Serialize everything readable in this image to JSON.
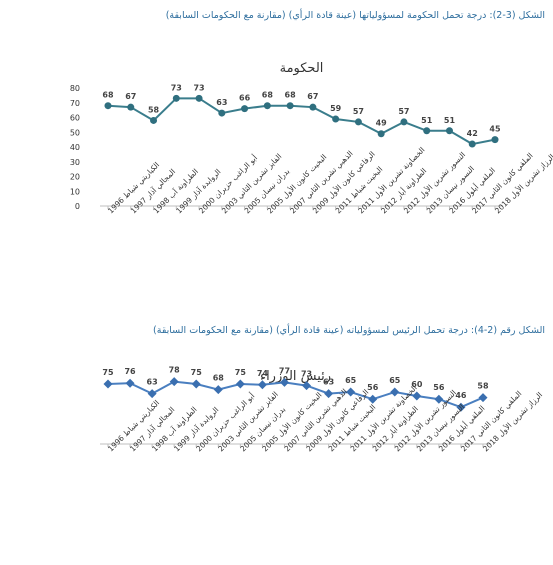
{
  "figure1": {
    "caption": "الشكل (3-2): درجة تحمل الحكومة لمسؤولياتها (عينة قادة الرأي) (مقارنة مع الحكومات السابقة)"
  },
  "figure2": {
    "caption": "الشكل رقم (2-4): درجة تحمل الرئيس لمسؤولياته (عينة قادة الرأي) (مقارنة مع الحكومات السابقة)"
  },
  "colors": {
    "line1": "#3a7d8c",
    "marker1": "#2f6f7f",
    "line2": "#4a7fc0",
    "marker2": "#3a6fb0",
    "highlight_label": "#e02020",
    "caption": "#2e6e9e"
  },
  "chart_data": [
    {
      "type": "line",
      "title": "الحكومة",
      "ylim": [
        0,
        80
      ],
      "yticks": [
        0,
        10,
        20,
        30,
        40,
        50,
        60,
        70,
        80
      ],
      "grid": false,
      "legend": "none",
      "marker": "circle",
      "categories": [
        "الكباريتي شباط 1996",
        "المجالي آذار 1997",
        "الطراونة آب 1998",
        "الروابدة آذار 1999",
        "أبو الراغب حزيران 2000",
        "الفايز تشرين الثاني 2003",
        "بدران نيسان 2005",
        "البخيت كانون الأول 2005",
        "الذهبي تشرين الثاني 2007",
        "الرفاعي كانون الأول 2009",
        "البخيت شباط 2011",
        "الخصاونة تشرين الأول 2011",
        "الطراونة أيار 2012",
        "النسور تشرين الأول 2012",
        "النسور نيسان 2013",
        "الملقي أيلول 2016",
        "الملقي كانون الثاني 2017",
        "الرزاز تشرين الأول 2018"
      ],
      "values": [
        68,
        67,
        58,
        73,
        73,
        63,
        66,
        68,
        68,
        67,
        59,
        57,
        49,
        57,
        51,
        51,
        42,
        45
      ]
    },
    {
      "type": "line",
      "title": "رئيس الوزراء",
      "ylim": [
        0,
        90
      ],
      "grid": false,
      "legend": "none",
      "marker": "diamond",
      "highlight_last_label": true,
      "categories": [
        "الكباريتي شباط 1996",
        "المجالي آذار 1997",
        "الطراونة آب 1998",
        "الروابدة آذار 1999",
        "أبو الراغب حزيران 2000",
        "الفايز تشرين الثاني 2003",
        "بدران نيسان 2005",
        "البخيت كانون الأول 2005",
        "الذهبي تشرين الثاني 2007",
        "الرفاعي كانون الأول 2009",
        "البخيت شباط 2011",
        "الخصاونة تشرين الأول 2011",
        "الطراونة أيار 2012",
        "النسور تشرين الأول 2012",
        "النسور نيسان 2013",
        "الملقي أيلول 2016",
        "الملقي كانون الثاني 2017",
        "الرزاز تشرين الأول 2018"
      ],
      "values": [
        75,
        76,
        63,
        78,
        75,
        68,
        75,
        74,
        77,
        73,
        63,
        65,
        56,
        65,
        60,
        56,
        46,
        58
      ]
    }
  ]
}
